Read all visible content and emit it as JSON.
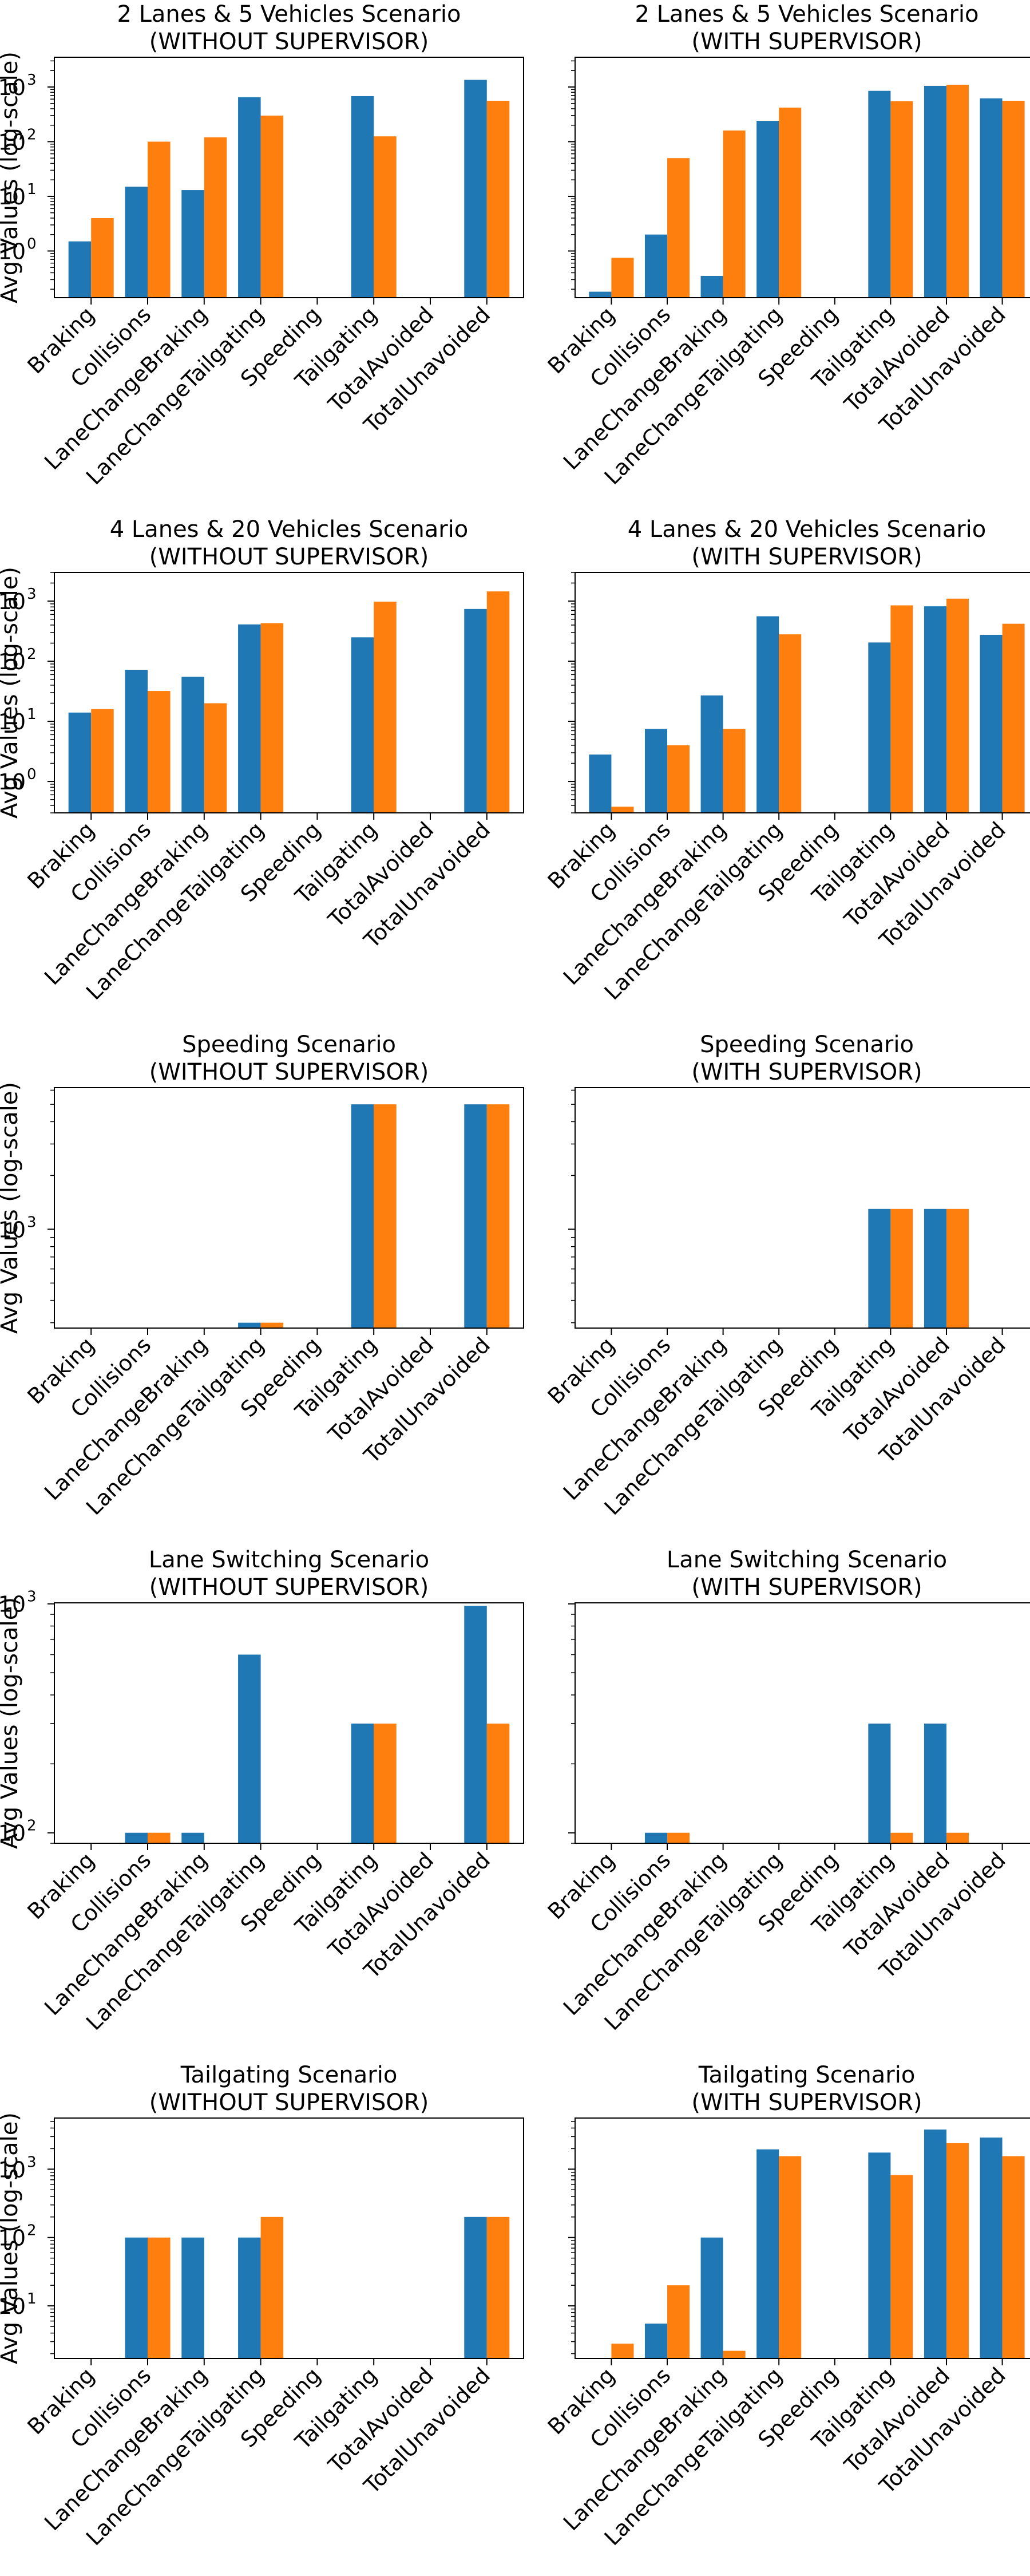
{
  "figure": {
    "shared_ylabel": "Avg Values (log-scale)"
  },
  "chart_data": [
    {
      "type": "bar",
      "title": "2 Lanes & 5 Vehicles Scenario\n(WITHOUT SUPERVISOR)",
      "ylabel": "Avg Values (log-scale)",
      "yscale": "log",
      "ylim": [
        0.14,
        3500
      ],
      "yticks": [
        {
          "value": 1,
          "label": "10",
          "exp": "0"
        },
        {
          "value": 10,
          "label": "10",
          "exp": "1"
        },
        {
          "value": 100,
          "label": "10",
          "exp": "2"
        },
        {
          "value": 1000,
          "label": "10",
          "exp": "3"
        }
      ],
      "categories": [
        "Braking",
        "Collisions",
        "LaneChangeBraking",
        "LaneChangeTailgating",
        "Speeding",
        "Tailgating",
        "TotalAvoided",
        "TotalUnavoided"
      ],
      "series": [
        {
          "color": "#1f77b4",
          "values": [
            1.5,
            15,
            13,
            650,
            null,
            680,
            null,
            1350
          ]
        },
        {
          "color": "#ff7f0e",
          "values": [
            4,
            100,
            120,
            300,
            null,
            125,
            null,
            560
          ]
        }
      ]
    },
    {
      "type": "bar",
      "title": "2 Lanes & 5 Vehicles Scenario\n(WITH SUPERVISOR)",
      "ylabel": "",
      "yscale": "log",
      "ylim": [
        0.14,
        3500
      ],
      "yticks": [
        {
          "value": 1,
          "label": "",
          "exp": ""
        },
        {
          "value": 10,
          "label": "",
          "exp": ""
        },
        {
          "value": 100,
          "label": "",
          "exp": ""
        },
        {
          "value": 1000,
          "label": "",
          "exp": ""
        }
      ],
      "categories": [
        "Braking",
        "Collisions",
        "LaneChangeBraking",
        "LaneChangeTailgating",
        "Speeding",
        "Tailgating",
        "TotalAvoided",
        "TotalUnavoided"
      ],
      "series": [
        {
          "color": "#1f77b4",
          "values": [
            0.18,
            2,
            0.35,
            240,
            null,
            850,
            1050,
            620
          ]
        },
        {
          "color": "#ff7f0e",
          "values": [
            0.75,
            50,
            160,
            420,
            null,
            550,
            1100,
            560
          ]
        }
      ]
    },
    {
      "type": "bar",
      "title": "4 Lanes & 20 Vehicles Scenario\n(WITHOUT SUPERVISOR)",
      "ylabel": "Avg Values (log-scale)",
      "yscale": "log",
      "ylim": [
        0.3,
        3000
      ],
      "yticks": [
        {
          "value": 1,
          "label": "10",
          "exp": "0"
        },
        {
          "value": 10,
          "label": "10",
          "exp": "1"
        },
        {
          "value": 100,
          "label": "10",
          "exp": "2"
        },
        {
          "value": 1000,
          "label": "10",
          "exp": "3"
        }
      ],
      "categories": [
        "Braking",
        "Collisions",
        "LaneChangeBraking",
        "LaneChangeTailgating",
        "Speeding",
        "Tailgating",
        "TotalAvoided",
        "TotalUnavoided"
      ],
      "series": [
        {
          "color": "#1f77b4",
          "values": [
            14,
            72,
            55,
            410,
            null,
            250,
            null,
            740
          ]
        },
        {
          "color": "#ff7f0e",
          "values": [
            16,
            32,
            20,
            430,
            null,
            980,
            null,
            1450
          ]
        }
      ]
    },
    {
      "type": "bar",
      "title": "4 Lanes & 20 Vehicles Scenario\n(WITH SUPERVISOR)",
      "ylabel": "",
      "yscale": "log",
      "ylim": [
        0.3,
        3000
      ],
      "yticks": [
        {
          "value": 1,
          "label": "",
          "exp": ""
        },
        {
          "value": 10,
          "label": "",
          "exp": ""
        },
        {
          "value": 100,
          "label": "",
          "exp": ""
        },
        {
          "value": 1000,
          "label": "",
          "exp": ""
        }
      ],
      "categories": [
        "Braking",
        "Collisions",
        "LaneChangeBraking",
        "LaneChangeTailgating",
        "Speeding",
        "Tailgating",
        "TotalAvoided",
        "TotalUnavoided"
      ],
      "series": [
        {
          "color": "#1f77b4",
          "values": [
            2.8,
            7.5,
            27,
            560,
            null,
            205,
            820,
            275
          ]
        },
        {
          "color": "#ff7f0e",
          "values": [
            0.38,
            4,
            7.5,
            280,
            null,
            850,
            1100,
            420
          ]
        }
      ]
    },
    {
      "type": "bar",
      "title": "Speeding Scenario\n(WITHOUT SUPERVISOR)",
      "ylabel": "Avg Values (log-scale)",
      "yscale": "log",
      "ylim": [
        280,
        6200
      ],
      "yticks": [
        {
          "value": 1000,
          "label": "10",
          "exp": "3"
        }
      ],
      "categories": [
        "Braking",
        "Collisions",
        "LaneChangeBraking",
        "LaneChangeTailgating",
        "Speeding",
        "Tailgating",
        "TotalAvoided",
        "TotalUnavoided"
      ],
      "series": [
        {
          "color": "#1f77b4",
          "values": [
            null,
            null,
            null,
            300,
            null,
            5000,
            null,
            5000
          ]
        },
        {
          "color": "#ff7f0e",
          "values": [
            null,
            null,
            null,
            300,
            null,
            5000,
            null,
            5000
          ]
        }
      ]
    },
    {
      "type": "bar",
      "title": "Speeding Scenario\n(WITH SUPERVISOR)",
      "ylabel": "",
      "yscale": "log",
      "ylim": [
        280,
        6200
      ],
      "yticks": [
        {
          "value": 1000,
          "label": "",
          "exp": ""
        }
      ],
      "categories": [
        "Braking",
        "Collisions",
        "LaneChangeBraking",
        "LaneChangeTailgating",
        "Speeding",
        "Tailgating",
        "TotalAvoided",
        "TotalUnavoided"
      ],
      "series": [
        {
          "color": "#1f77b4",
          "values": [
            null,
            null,
            null,
            null,
            null,
            1300,
            1300,
            null
          ]
        },
        {
          "color": "#ff7f0e",
          "values": [
            null,
            null,
            null,
            null,
            null,
            1300,
            1300,
            null
          ]
        }
      ]
    },
    {
      "type": "bar",
      "title": "Lane Switching Scenario\n(WITHOUT SUPERVISOR)",
      "ylabel": "Avg Values (log-scale)",
      "yscale": "log",
      "ylim": [
        90,
        1010
      ],
      "yticks": [
        {
          "value": 100,
          "label": "10",
          "exp": "2"
        },
        {
          "value": 1000,
          "label": "10",
          "exp": "3"
        }
      ],
      "categories": [
        "Braking",
        "Collisions",
        "LaneChangeBraking",
        "LaneChangeTailgating",
        "Speeding",
        "Tailgating",
        "TotalAvoided",
        "TotalUnavoided"
      ],
      "series": [
        {
          "color": "#1f77b4",
          "values": [
            null,
            100,
            100,
            600,
            null,
            300,
            null,
            980
          ]
        },
        {
          "color": "#ff7f0e",
          "values": [
            null,
            100,
            null,
            null,
            null,
            300,
            null,
            300
          ]
        }
      ]
    },
    {
      "type": "bar",
      "title": "Lane Switching Scenario\n(WITH SUPERVISOR)",
      "ylabel": "",
      "yscale": "log",
      "ylim": [
        90,
        1010
      ],
      "yticks": [
        {
          "value": 100,
          "label": "",
          "exp": ""
        },
        {
          "value": 1000,
          "label": "",
          "exp": ""
        }
      ],
      "categories": [
        "Braking",
        "Collisions",
        "LaneChangeBraking",
        "LaneChangeTailgating",
        "Speeding",
        "Tailgating",
        "TotalAvoided",
        "TotalUnavoided"
      ],
      "series": [
        {
          "color": "#1f77b4",
          "values": [
            null,
            100,
            null,
            null,
            null,
            300,
            300,
            null
          ]
        },
        {
          "color": "#ff7f0e",
          "values": [
            null,
            100,
            null,
            null,
            null,
            100,
            100,
            null
          ]
        }
      ]
    },
    {
      "type": "bar",
      "title": "Tailgating Scenario\n(WITHOUT SUPERVISOR)",
      "ylabel": "Avg Values (log-scale)",
      "yscale": "log",
      "ylim": [
        1.7,
        5600
      ],
      "yticks": [
        {
          "value": 10,
          "label": "10",
          "exp": "1"
        },
        {
          "value": 100,
          "label": "10",
          "exp": "2"
        },
        {
          "value": 1000,
          "label": "10",
          "exp": "3"
        }
      ],
      "categories": [
        "Braking",
        "Collisions",
        "LaneChangeBraking",
        "LaneChangeTailgating",
        "Speeding",
        "Tailgating",
        "TotalAvoided",
        "TotalUnavoided"
      ],
      "series": [
        {
          "color": "#1f77b4",
          "values": [
            null,
            100,
            100,
            100,
            null,
            null,
            null,
            200
          ]
        },
        {
          "color": "#ff7f0e",
          "values": [
            null,
            100,
            null,
            200,
            null,
            null,
            null,
            200
          ]
        }
      ]
    },
    {
      "type": "bar",
      "title": "Tailgating Scenario\n(WITH SUPERVISOR)",
      "ylabel": "",
      "yscale": "log",
      "ylim": [
        1.7,
        5600
      ],
      "yticks": [
        {
          "value": 10,
          "label": "",
          "exp": ""
        },
        {
          "value": 100,
          "label": "",
          "exp": ""
        },
        {
          "value": 1000,
          "label": "",
          "exp": ""
        }
      ],
      "categories": [
        "Braking",
        "Collisions",
        "LaneChangeBraking",
        "LaneChangeTailgating",
        "Speeding",
        "Tailgating",
        "TotalAvoided",
        "TotalUnavoided"
      ],
      "series": [
        {
          "color": "#1f77b4",
          "values": [
            null,
            5.5,
            100,
            1950,
            null,
            1750,
            3800,
            2900
          ]
        },
        {
          "color": "#ff7f0e",
          "values": [
            2.8,
            20,
            2.2,
            1550,
            null,
            820,
            2400,
            1550
          ]
        }
      ]
    }
  ]
}
